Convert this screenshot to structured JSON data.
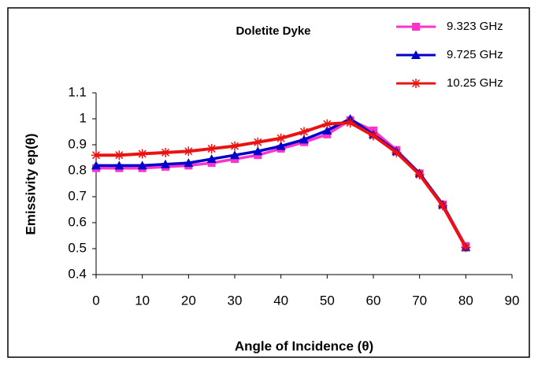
{
  "chart_data": {
    "type": "line",
    "title": "Doletite Dyke",
    "x_label": "Angle of Incidence (θ)",
    "y_label": "Emissivity ep(θ)",
    "x": [
      0,
      5,
      10,
      15,
      20,
      25,
      30,
      35,
      40,
      45,
      50,
      55,
      60,
      65,
      70,
      75,
      80
    ],
    "series": [
      {
        "name": "9.323 GHz",
        "color": "#ff33cc",
        "marker": "square",
        "values": [
          0.81,
          0.81,
          0.81,
          0.815,
          0.82,
          0.83,
          0.845,
          0.86,
          0.885,
          0.91,
          0.94,
          0.995,
          0.955,
          0.88,
          0.79,
          0.67,
          0.51
        ]
      },
      {
        "name": "9.725 GHz",
        "color": "#0000cc",
        "marker": "triangle",
        "values": [
          0.82,
          0.82,
          0.82,
          0.825,
          0.83,
          0.845,
          0.86,
          0.875,
          0.895,
          0.92,
          0.955,
          1.0,
          0.94,
          0.875,
          0.79,
          0.67,
          0.505
        ]
      },
      {
        "name": "10.25 GHz",
        "color": "#ee1111",
        "marker": "star",
        "values": [
          0.86,
          0.86,
          0.865,
          0.87,
          0.875,
          0.885,
          0.895,
          0.91,
          0.925,
          0.95,
          0.98,
          0.985,
          0.935,
          0.87,
          0.785,
          0.665,
          0.505
        ]
      }
    ],
    "xlim": [
      0,
      90
    ],
    "xticks": [
      0,
      10,
      20,
      30,
      40,
      50,
      60,
      70,
      80,
      90
    ],
    "ylim": [
      0.4,
      1.1
    ],
    "yticks": [
      0.4,
      0.5,
      0.6,
      0.7,
      0.8,
      0.9,
      1,
      1.1
    ],
    "grid": false,
    "legend": "top-right"
  }
}
